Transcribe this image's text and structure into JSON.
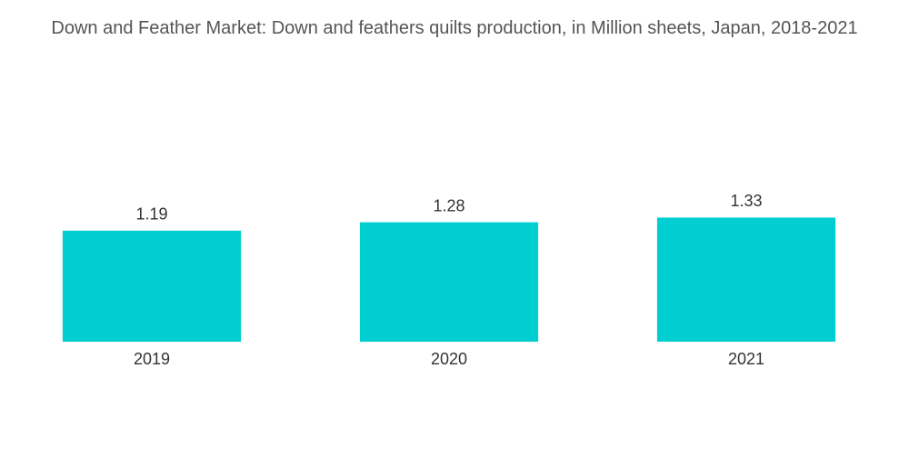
{
  "chart_data": {
    "type": "bar",
    "title": "Down and Feather Market: Down and feathers quilts production, in Million sheets, Japan, 2018-2021",
    "categories": [
      "2019",
      "2020",
      "2021"
    ],
    "values": [
      1.19,
      1.28,
      1.33
    ],
    "color": "#00ced1",
    "ylim": [
      0,
      1.5
    ]
  }
}
